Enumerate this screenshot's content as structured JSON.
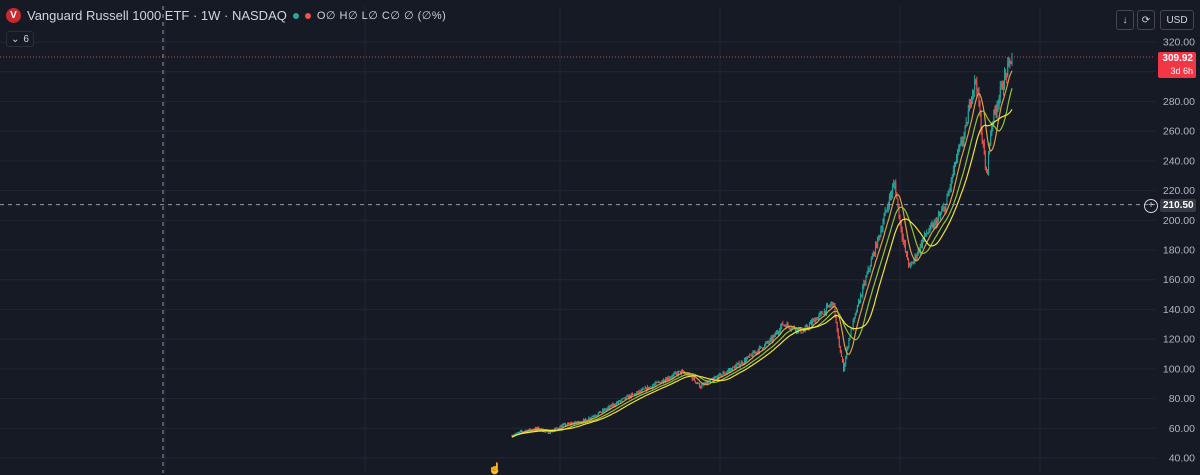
{
  "legend": {
    "logo_letter": "V",
    "symbol": "Vanguard Russell 1000 ETF · 1W · NASDAQ",
    "ohlc_text": "O∅ H∅ L∅ C∅ ∅ (∅%)",
    "dot_colors": [
      "#26a69a",
      "#ef5350"
    ]
  },
  "indicators": {
    "count": "6"
  },
  "toolbar": {
    "currency": "USD",
    "download_icon": "download-icon",
    "refresh_icon": "refresh-icon"
  },
  "price_badge": {
    "price": "309.92",
    "countdown": "3d 6h",
    "color": "#f23645"
  },
  "crosshair_badge": {
    "price": "210.50"
  },
  "chart_data": {
    "type": "candlestick",
    "ylim": [
      40,
      320
    ],
    "y_ticks": [
      40,
      60,
      80,
      100,
      120,
      140,
      160,
      180,
      200,
      220,
      240,
      260,
      280,
      300,
      320
    ],
    "y_tick_labels": [
      "40.00",
      "60.00",
      "80.00",
      "100.00",
      "120.00",
      "140.00",
      "160.00",
      "180.00",
      "200.00",
      "220.00",
      "240.00",
      "260.00",
      "280.00",
      "300.00",
      "320.00"
    ],
    "last_price": 309.92,
    "crosshair_price": 210.5,
    "colors": {
      "up": "#26a69a",
      "down": "#ef5350",
      "ma_fast": "#e8a642",
      "ma_mid": "#9acd32",
      "ma_slow": "#ffeb3b"
    },
    "close_path": [
      [
        0,
        55
      ],
      [
        2,
        58
      ],
      [
        5,
        60
      ],
      [
        7,
        57
      ],
      [
        10,
        62
      ],
      [
        14,
        65
      ],
      [
        18,
        72
      ],
      [
        22,
        80
      ],
      [
        26,
        86
      ],
      [
        30,
        93
      ],
      [
        33,
        98
      ],
      [
        35,
        95
      ],
      [
        37,
        88
      ],
      [
        39,
        92
      ],
      [
        42,
        98
      ],
      [
        45,
        104
      ],
      [
        48,
        112
      ],
      [
        51,
        120
      ],
      [
        53,
        130
      ],
      [
        55,
        128
      ],
      [
        57,
        125
      ],
      [
        59,
        132
      ],
      [
        61,
        138
      ],
      [
        63,
        145
      ],
      [
        64,
        118
      ],
      [
        65,
        100
      ],
      [
        66,
        120
      ],
      [
        68,
        145
      ],
      [
        70,
        168
      ],
      [
        72,
        190
      ],
      [
        74,
        215
      ],
      [
        75,
        225
      ],
      [
        76,
        200
      ],
      [
        77,
        180
      ],
      [
        78,
        168
      ],
      [
        79,
        175
      ],
      [
        81,
        190
      ],
      [
        83,
        198
      ],
      [
        85,
        210
      ],
      [
        87,
        240
      ],
      [
        89,
        262
      ],
      [
        90,
        285
      ],
      [
        91,
        295
      ],
      [
        92,
        260
      ],
      [
        93,
        230
      ],
      [
        94,
        265
      ],
      [
        96,
        290
      ],
      [
        98,
        310
      ]
    ]
  }
}
